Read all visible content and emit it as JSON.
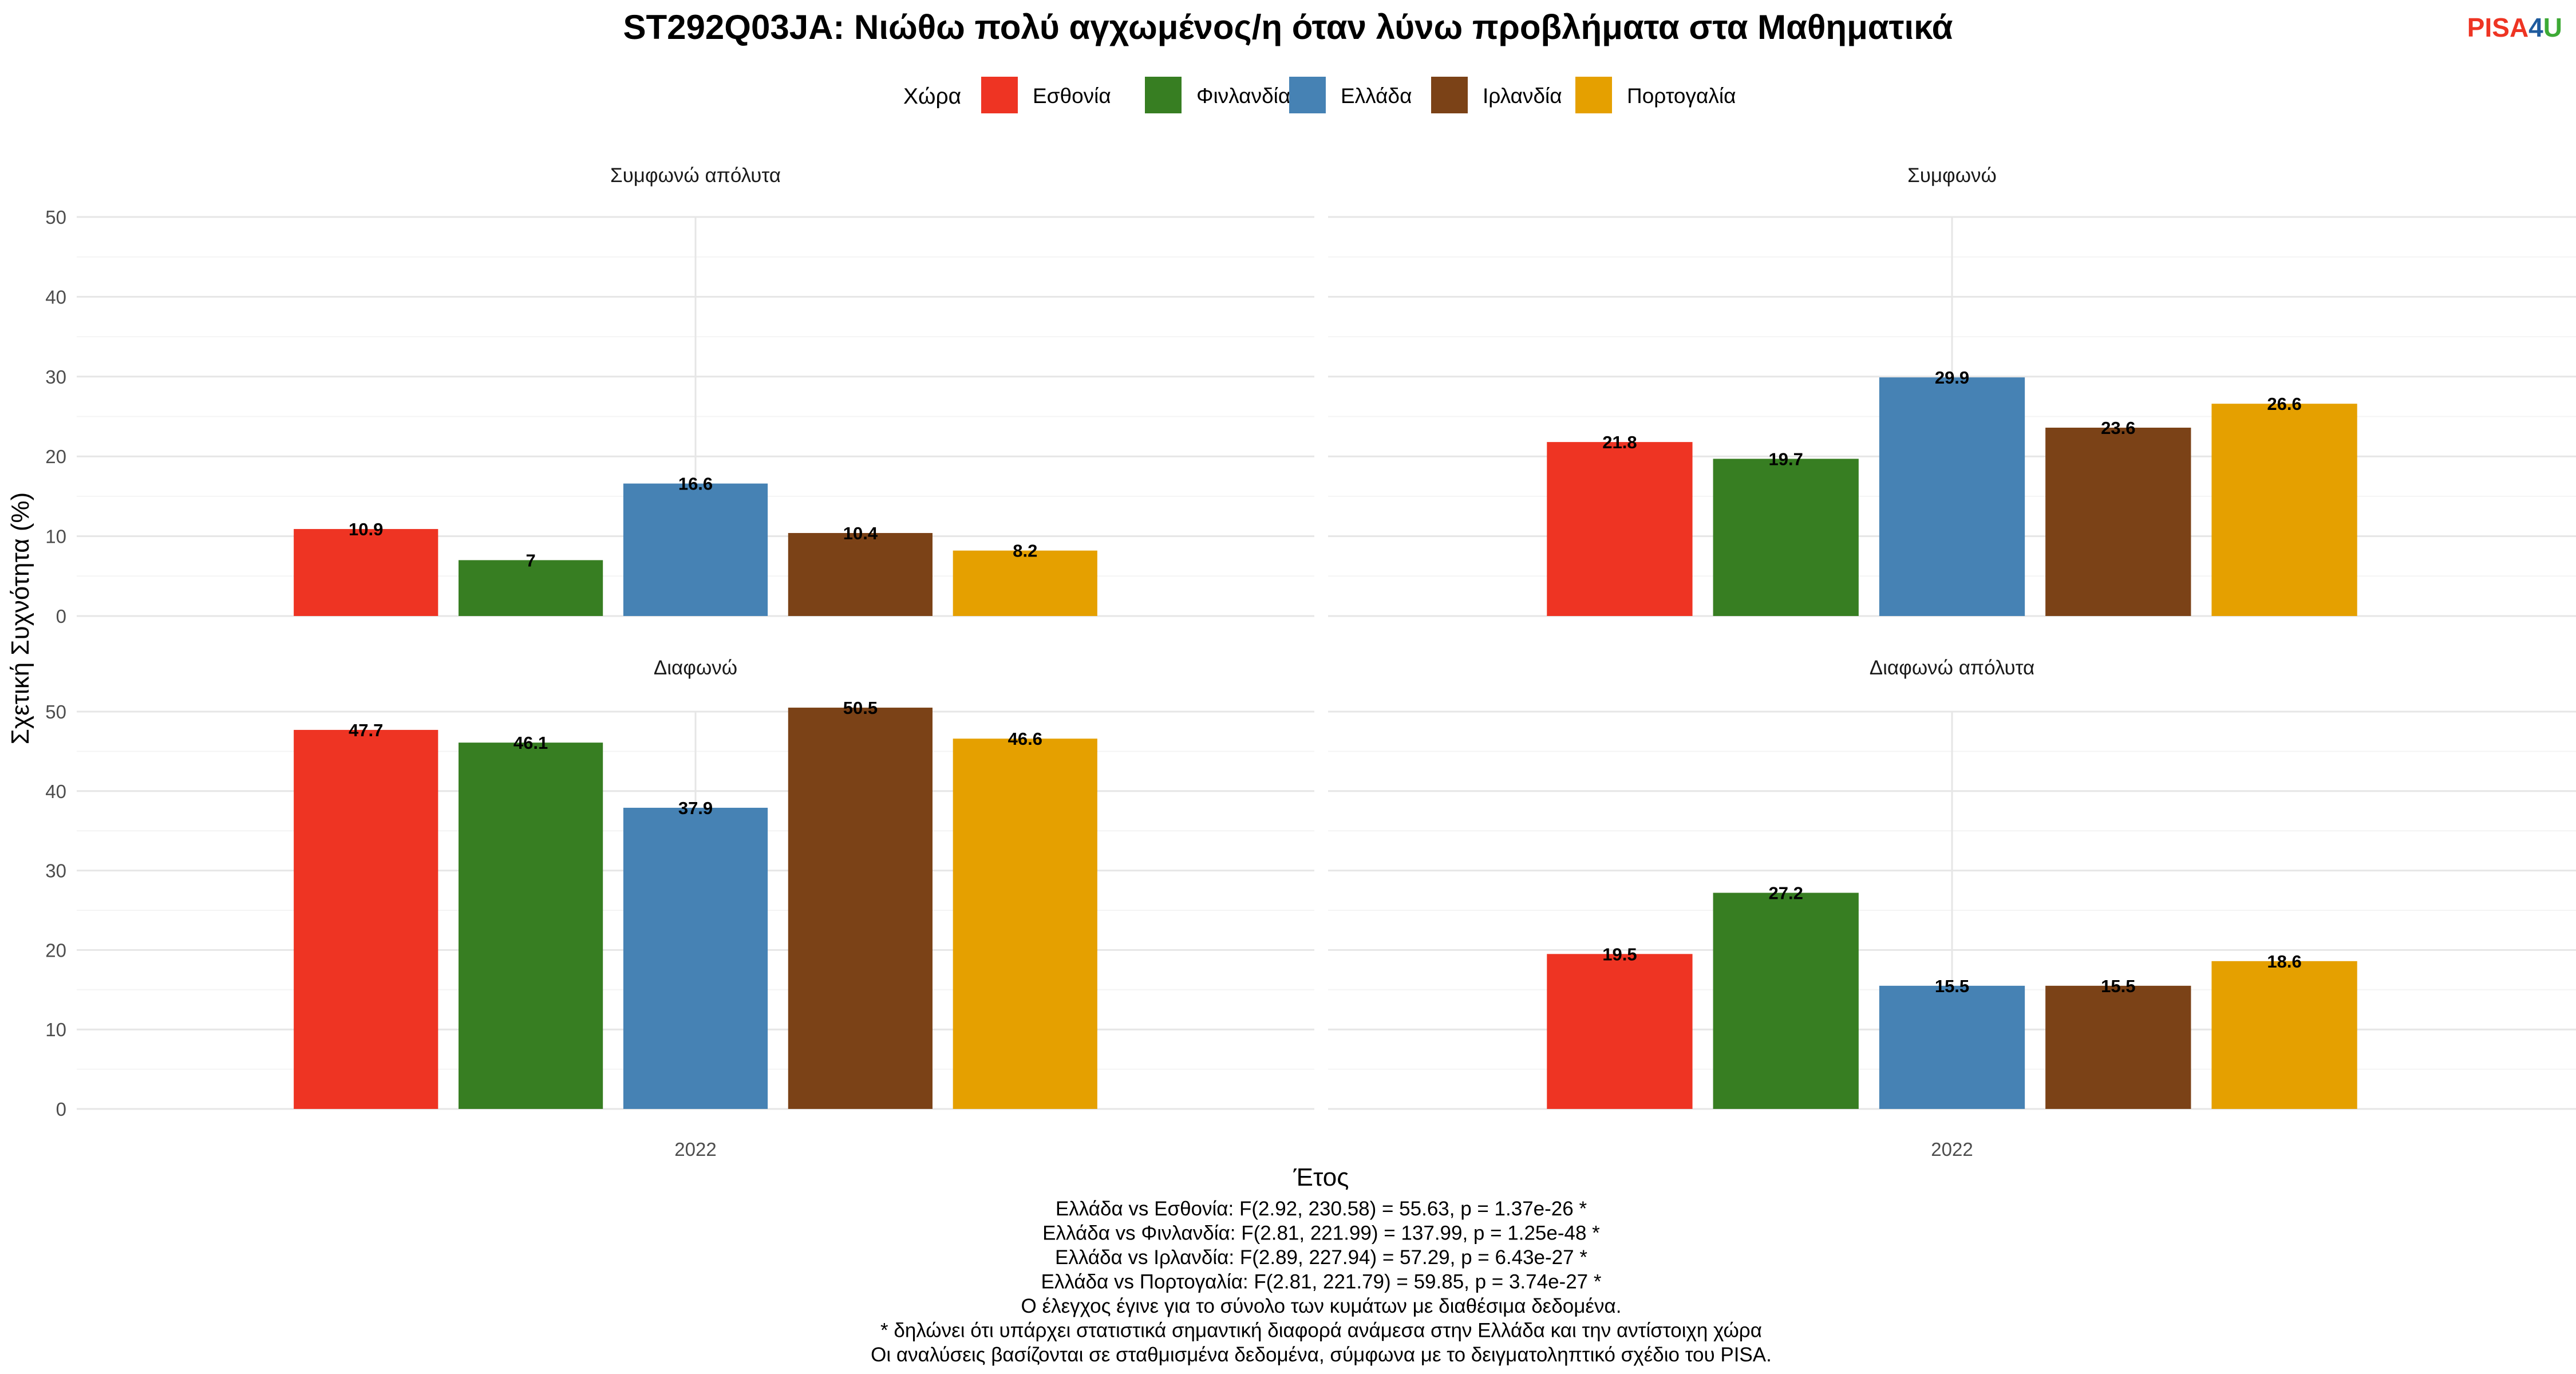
{
  "logo": {
    "part1": "PISA",
    "part2": "4",
    "part3": "U",
    "color1": "#EE3423",
    "color2": "#1F5B9E",
    "color3": "#3DAA35"
  },
  "chart_data": {
    "type": "bar",
    "title": "ST292Q03JA: Νιώθω πολύ αγχωμένος/η όταν λύνω προβλήματα στα Μαθηματικά",
    "legend_title": "Χώρα",
    "legend_position": "top",
    "xlabel": "Έτος",
    "ylabel": "Σχετική Συχνότητα (%)",
    "ylim": [
      0,
      50
    ],
    "yticks": [
      "0",
      "10",
      "20",
      "30",
      "40",
      "50"
    ],
    "categories": [
      "2022"
    ],
    "grid": true,
    "series": [
      {
        "name": "Εσθονία",
        "color": "#EE3423"
      },
      {
        "name": "Φινλανδία",
        "color": "#377E22"
      },
      {
        "name": "Ελλάδα",
        "color": "#4682B4"
      },
      {
        "name": "Ιρλανδία",
        "color": "#7B4217"
      },
      {
        "name": "Πορτογαλία",
        "color": "#E5A000"
      }
    ],
    "facets": [
      {
        "label": "Συμφωνώ απόλυτα",
        "values": [
          10.9,
          7,
          16.6,
          10.4,
          8.2
        ],
        "value_labels": [
          "10.9",
          "7",
          "16.6",
          "10.4",
          "8.2"
        ]
      },
      {
        "label": "Συμφωνώ",
        "values": [
          21.8,
          19.7,
          29.9,
          23.6,
          26.6
        ],
        "value_labels": [
          "21.8",
          "19.7",
          "29.9",
          "23.6",
          "26.6"
        ]
      },
      {
        "label": "Διαφωνώ",
        "values": [
          47.7,
          46.1,
          37.9,
          50.5,
          46.6
        ],
        "value_labels": [
          "47.7",
          "46.1",
          "37.9",
          "50.5",
          "46.6"
        ]
      },
      {
        "label": "Διαφωνώ απόλυτα",
        "values": [
          19.5,
          27.2,
          15.5,
          15.5,
          18.6
        ],
        "value_labels": [
          "19.5",
          "27.2",
          "15.5",
          "15.5",
          "18.6"
        ]
      }
    ],
    "footnotes": [
      "Ελλάδα vs Εσθονία: F(2.92, 230.58) = 55.63, p = 1.37e-26 *",
      "Ελλάδα vs Φινλανδία: F(2.81, 221.99) = 137.99, p = 1.25e-48 *",
      "Ελλάδα vs Ιρλανδία: F(2.89, 227.94) = 57.29, p = 6.43e-27 *",
      "Ελλάδα vs Πορτογαλία: F(2.81, 221.79) = 59.85, p = 3.74e-27 *",
      "Ο έλεγχος έγινε για το σύνολο των κυμάτων με διαθέσιμα δεδομένα.",
      "* δηλώνει ότι υπάρχει στατιστικά σημαντική διαφορά ανάμεσα στην Ελλάδα και την αντίστοιχη χώρα",
      "Οι αναλύσεις βασίζονται σε σταθμισμένα δεδομένα, σύμφωνα με το δειγματοληπτικό σχέδιο του PISA."
    ]
  }
}
